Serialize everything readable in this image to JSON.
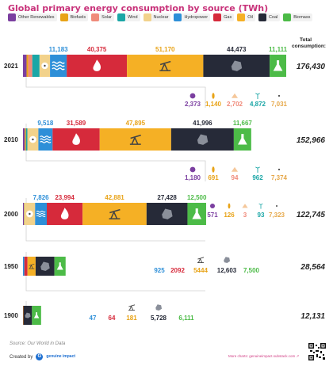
{
  "title": "Global primary energy consumption by source (TWh)",
  "total_label": "Total\nconsumption:",
  "source_note": "Source: Our World in Data",
  "created_by": "Created by",
  "brand": "genuine impact",
  "more_charts": "More charts: genuineimpact.substack.com ↗",
  "legend": [
    {
      "name": "Other Renewables",
      "color": "#7b3fa0"
    },
    {
      "name": "Biofuels",
      "color": "#e8a317"
    },
    {
      "name": "Solar",
      "color": "#f08a7a"
    },
    {
      "name": "Wind",
      "color": "#1aa6a6"
    },
    {
      "name": "Nuclear",
      "color": "#f2d28b"
    },
    {
      "name": "Hydropower",
      "color": "#2d8fd8"
    },
    {
      "name": "Gas",
      "color": "#d62a3b"
    },
    {
      "name": "Oil",
      "color": "#f5b025"
    },
    {
      "name": "Coal",
      "color": "#262a38"
    },
    {
      "name": "Biomass",
      "color": "#4cbb47"
    }
  ],
  "chart_data": {
    "type": "bar",
    "orientation": "horizontal",
    "stacked": true,
    "categories": [
      "2021",
      "2010",
      "2000",
      "1950",
      "1900"
    ],
    "series": [
      {
        "name": "Other Renewables",
        "color": "#7b3fa0",
        "values": [
          2373,
          1180,
          571,
          0,
          0
        ]
      },
      {
        "name": "Biofuels",
        "color": "#e8a317",
        "values": [
          1140,
          691,
          126,
          0,
          0
        ]
      },
      {
        "name": "Solar",
        "color": "#f08a7a",
        "values": [
          2702,
          94,
          3,
          0,
          0
        ]
      },
      {
        "name": "Wind",
        "color": "#1aa6a6",
        "values": [
          4872,
          962,
          93,
          0,
          0
        ]
      },
      {
        "name": "Nuclear",
        "color": "#f2d28b",
        "values": [
          7031,
          7374,
          7323,
          0,
          0
        ]
      },
      {
        "name": "Hydropower",
        "color": "#2d8fd8",
        "values": [
          11183,
          9518,
          7826,
          925,
          47
        ]
      },
      {
        "name": "Gas",
        "color": "#d62a3b",
        "values": [
          40375,
          31589,
          23994,
          2092,
          64
        ]
      },
      {
        "name": "Oil",
        "color": "#f5b025",
        "values": [
          51170,
          47895,
          42881,
          5444,
          181
        ]
      },
      {
        "name": "Coal",
        "color": "#262a38",
        "values": [
          44473,
          41996,
          27428,
          12603,
          5728
        ]
      },
      {
        "name": "Biomass",
        "color": "#4cbb47",
        "values": [
          11111,
          11667,
          12500,
          7500,
          6111
        ]
      }
    ],
    "totals": [
      "176,430",
      "152,966",
      "122,745",
      "28,564",
      "12,131"
    ],
    "above_labels": [
      [
        {
          "s": 5,
          "t": "11,183"
        },
        {
          "s": 6,
          "t": "40,375"
        },
        {
          "s": 7,
          "t": "51,170"
        },
        {
          "s": 8,
          "t": "44,473"
        },
        {
          "s": 9,
          "t": "11,111"
        }
      ],
      [
        {
          "s": 5,
          "t": "9,518"
        },
        {
          "s": 6,
          "t": "31,589"
        },
        {
          "s": 7,
          "t": "47,895"
        },
        {
          "s": 8,
          "t": "41,996"
        },
        {
          "s": 9,
          "t": "11,667"
        }
      ],
      [
        {
          "s": 5,
          "t": "7,826"
        },
        {
          "s": 6,
          "t": "23,994"
        },
        {
          "s": 7,
          "t": "42,881"
        },
        {
          "s": 8,
          "t": "27,428"
        },
        {
          "s": 9,
          "t": "12,500"
        }
      ]
    ],
    "below_labels": [
      [
        "2,373",
        "1,140",
        "2,702",
        "4,872",
        "7,031"
      ],
      [
        "1,180",
        "691",
        "94",
        "962",
        "7,374"
      ]
    ],
    "side_labels": [
      [
        "571",
        "126",
        "3",
        "93",
        "7,323"
      ],
      [
        "925",
        "2092",
        "5444",
        "12,603",
        "7,500"
      ],
      [
        "47",
        "64",
        "181",
        "5,728",
        "6,111"
      ]
    ]
  }
}
